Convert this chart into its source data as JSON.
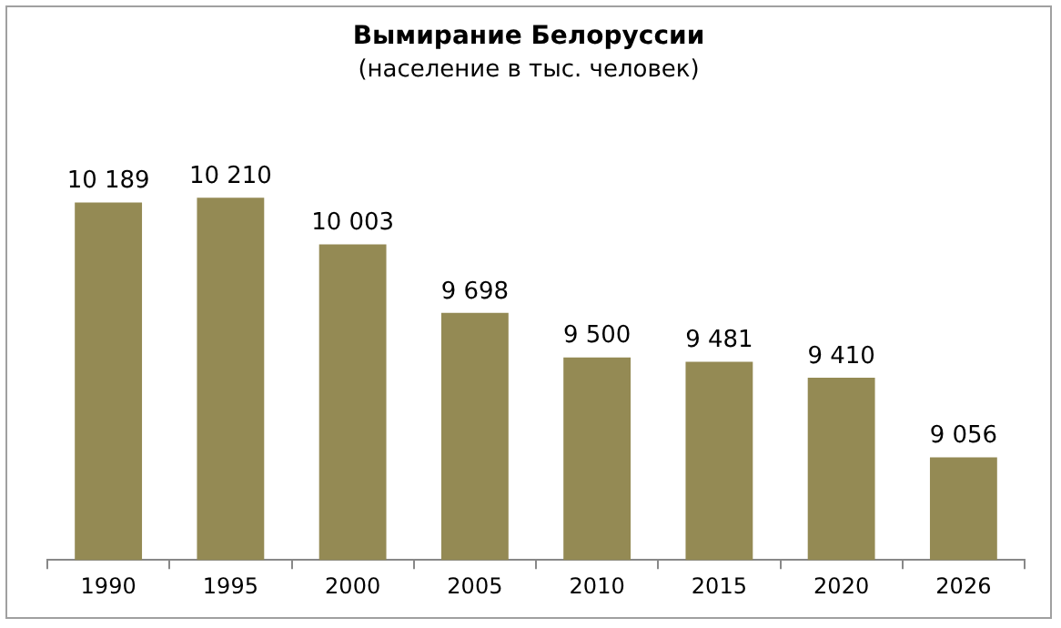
{
  "chart_data": {
    "type": "bar",
    "title": "Вымирание Белоруссии",
    "subtitle": "(население в тыс. человек)",
    "categories": [
      "1990",
      "1995",
      "2000",
      "2005",
      "2010",
      "2015",
      "2020",
      "2026"
    ],
    "values": [
      10189,
      10210,
      10003,
      9698,
      9500,
      9481,
      9410,
      9056
    ],
    "value_labels": [
      "10 189",
      "10 210",
      "10 003",
      "9 698",
      "9 500",
      "9 481",
      "9 410",
      "9 056"
    ],
    "color": "#948a54",
    "tick_labels": "x",
    "grid": false,
    "legend": false
  }
}
